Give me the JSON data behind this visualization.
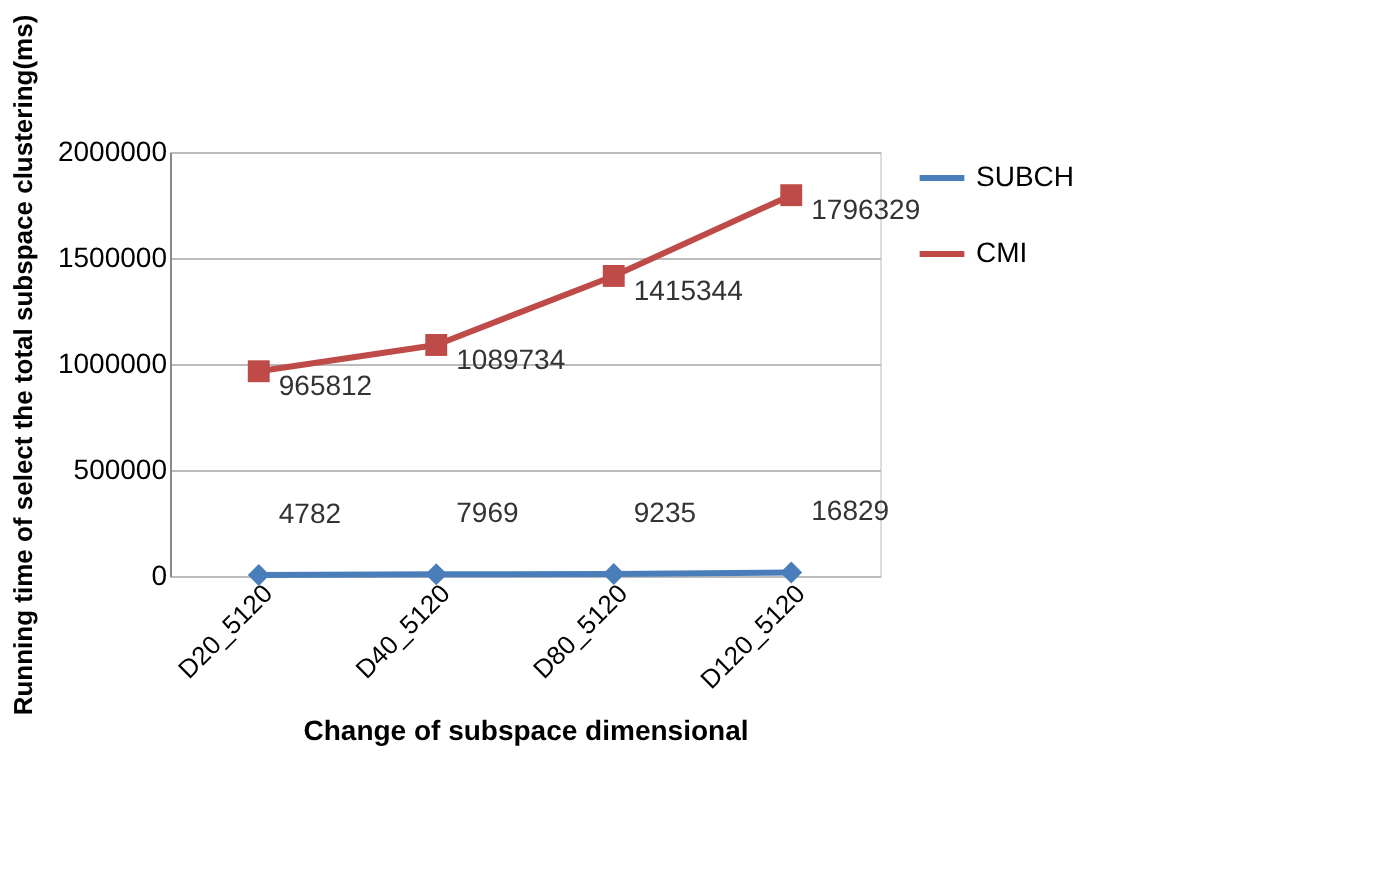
{
  "chart_data": {
    "type": "line",
    "xlabel": "Change of subspace dimensional",
    "ylabel": "Running time of  select the total subspace clustering(ms)",
    "categories": [
      "D20_5120",
      "D40_5120",
      "D80_5120",
      "D120_5120"
    ],
    "series": [
      {
        "name": "SUBCH",
        "color": "#4a7ebb",
        "marker": "diamond",
        "values": [
          4782,
          7969,
          9235,
          16829
        ]
      },
      {
        "name": "CMI",
        "color": "#be4b48",
        "marker": "square",
        "values": [
          965812,
          1089734,
          1415344,
          1796329
        ]
      }
    ],
    "ylim": [
      0,
      2000000
    ],
    "yticks": [
      0,
      500000,
      1000000,
      1500000,
      2000000
    ],
    "grid": "y",
    "legend": "right",
    "data_labels": true
  }
}
